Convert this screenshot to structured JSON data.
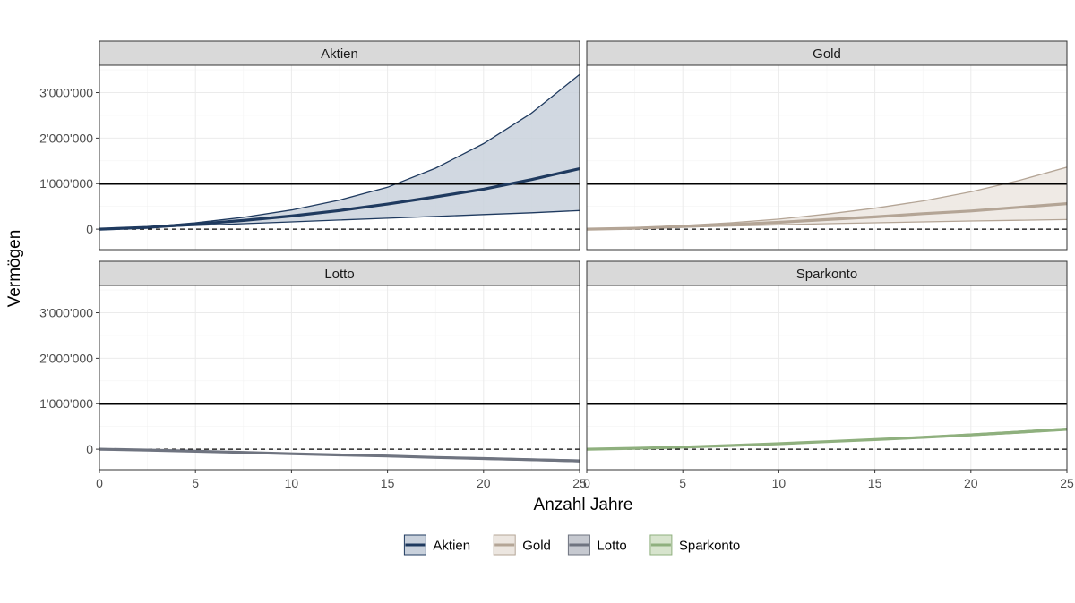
{
  "chart_data": {
    "type": "line",
    "xlabel": "Anzahl Jahre",
    "ylabel": "Vermögen",
    "xlim": [
      0,
      25
    ],
    "ylim": [
      -450000,
      3600000
    ],
    "x_ticks": [
      0,
      5,
      10,
      15,
      20,
      25
    ],
    "x_tick_labels": [
      "0",
      "5",
      "10",
      "15",
      "20",
      "25"
    ],
    "y_ticks": [
      0,
      1000000,
      2000000,
      3000000
    ],
    "y_tick_labels": [
      "0",
      "1'000'000",
      "2'000'000",
      "3'000'000"
    ],
    "reference_lines": [
      {
        "y": 1000000,
        "style": "solid"
      },
      {
        "y": 0,
        "style": "dashed"
      }
    ],
    "grid": true,
    "legend_position": "bottom",
    "x": [
      0,
      2.5,
      5,
      7.5,
      10,
      12.5,
      15,
      17.5,
      20,
      22.5,
      25
    ],
    "series": [
      {
        "name": "Aktien",
        "color": "#1f3a5f",
        "fill": "#c9d1dc",
        "median": [
          0,
          40000,
          110000,
          190000,
          290000,
          410000,
          550000,
          710000,
          880000,
          1090000,
          1330000
        ],
        "lower": [
          0,
          35000,
          80000,
          120000,
          160000,
          200000,
          240000,
          280000,
          320000,
          360000,
          410000
        ],
        "upper": [
          0,
          50000,
          140000,
          260000,
          420000,
          640000,
          920000,
          1340000,
          1880000,
          2550000,
          3400000
        ]
      },
      {
        "name": "Gold",
        "color": "#b4a596",
        "fill": "#ece6e0",
        "median": [
          0,
          20000,
          60000,
          100000,
          150000,
          210000,
          270000,
          340000,
          400000,
          480000,
          560000
        ],
        "lower": [
          0,
          15000,
          45000,
          70000,
          95000,
          120000,
          140000,
          160000,
          180000,
          195000,
          210000
        ],
        "upper": [
          0,
          30000,
          80000,
          140000,
          220000,
          330000,
          460000,
          620000,
          820000,
          1070000,
          1360000
        ]
      },
      {
        "name": "Lotto",
        "color": "#6f7480",
        "fill": "#c6c9d0",
        "median": [
          0,
          -20000,
          -45000,
          -70000,
          -100000,
          -125000,
          -150000,
          -180000,
          -205000,
          -230000,
          -255000
        ],
        "lower": [
          0,
          -22000,
          -50000,
          -78000,
          -108000,
          -135000,
          -162000,
          -192000,
          -220000,
          -245000,
          -275000
        ],
        "upper": [
          0,
          -18000,
          -40000,
          -62000,
          -92000,
          -115000,
          -138000,
          -168000,
          -190000,
          -215000,
          -235000
        ]
      },
      {
        "name": "Sparkonto",
        "color": "#8fb07e",
        "fill": "#d7e4cd",
        "median": [
          0,
          20000,
          45000,
          80000,
          120000,
          165000,
          210000,
          260000,
          315000,
          375000,
          440000
        ],
        "lower": [
          0,
          18000,
          42000,
          75000,
          113000,
          155000,
          198000,
          246000,
          298000,
          355000,
          418000
        ],
        "upper": [
          0,
          22000,
          48000,
          85000,
          127000,
          175000,
          222000,
          274000,
          332000,
          395000,
          462000
        ]
      }
    ]
  }
}
